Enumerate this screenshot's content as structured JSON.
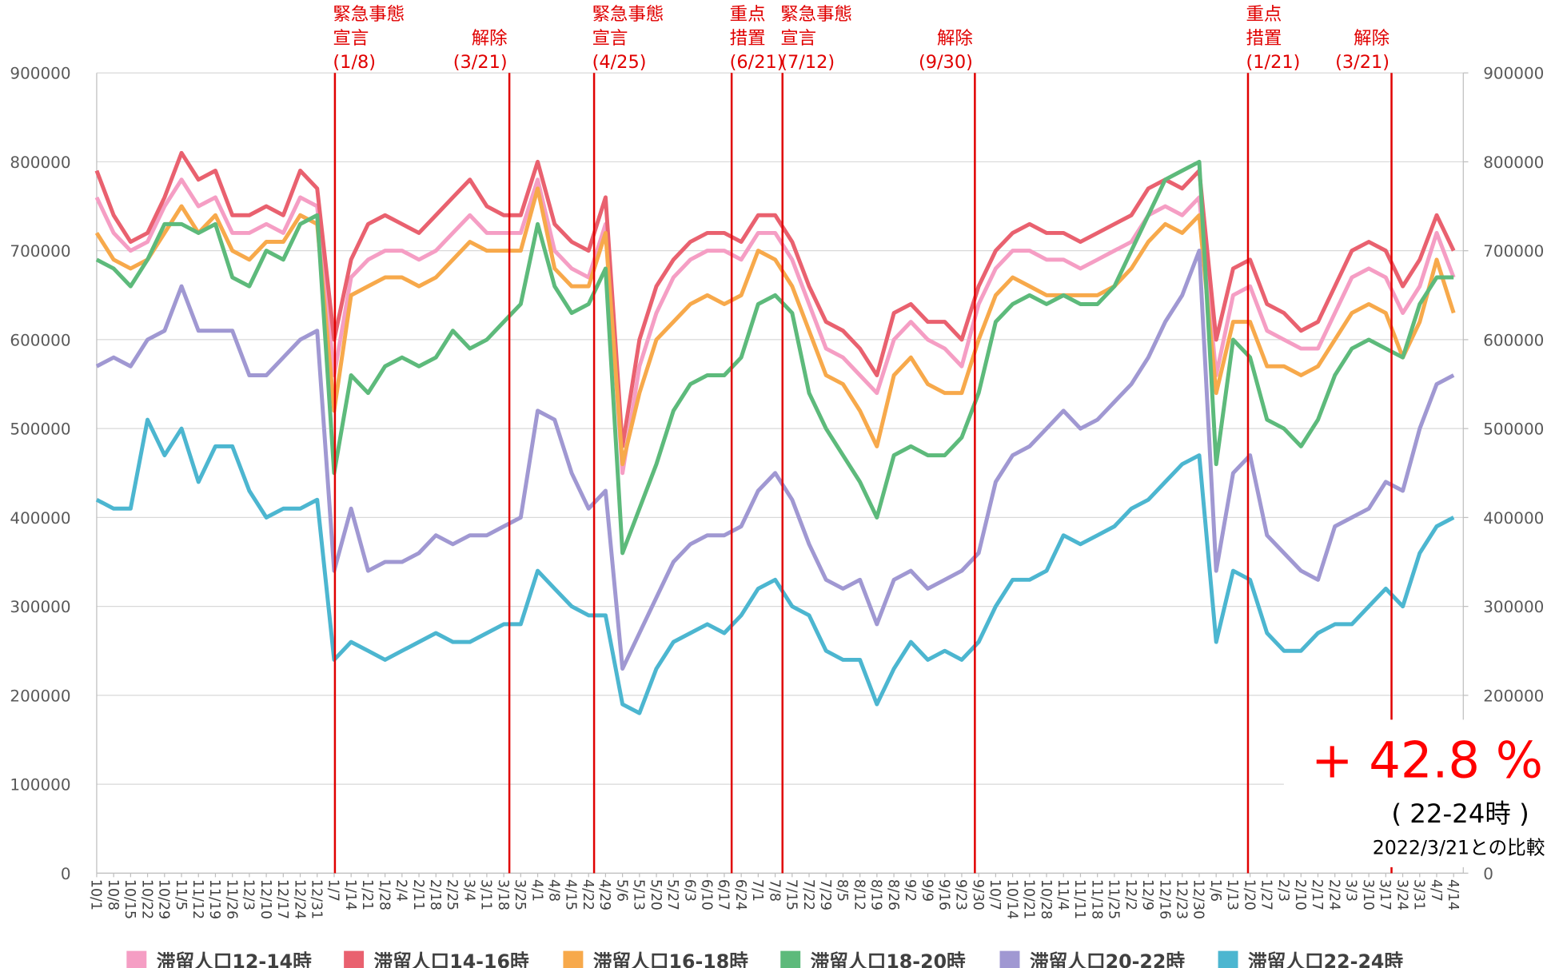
{
  "chart_data": {
    "type": "line",
    "categories": [
      "10/1",
      "10/8",
      "10/15",
      "10/22",
      "10/29",
      "11/5",
      "11/12",
      "11/19",
      "11/26",
      "12/3",
      "12/10",
      "12/17",
      "12/24",
      "12/31",
      "1/7",
      "1/14",
      "1/21",
      "1/28",
      "2/4",
      "2/11",
      "2/18",
      "2/25",
      "3/4",
      "3/11",
      "3/18",
      "3/25",
      "4/1",
      "4/8",
      "4/15",
      "4/22",
      "4/29",
      "5/6",
      "5/13",
      "5/20",
      "5/27",
      "6/3",
      "6/10",
      "6/17",
      "6/24",
      "7/1",
      "7/8",
      "7/15",
      "7/22",
      "7/29",
      "8/5",
      "8/12",
      "8/19",
      "8/26",
      "9/2",
      "9/9",
      "9/16",
      "9/23",
      "9/30",
      "10/7",
      "10/14",
      "10/21",
      "10/28",
      "11/4",
      "11/11",
      "11/18",
      "11/25",
      "12/2",
      "12/9",
      "12/16",
      "12/23",
      "12/30",
      "1/6",
      "1/13",
      "1/20",
      "1/27",
      "2/3",
      "2/10",
      "2/17",
      "2/24",
      "3/3",
      "3/10",
      "3/17",
      "3/24",
      "3/31",
      "4/7",
      "4/14"
    ],
    "series": [
      {
        "name": "滞留人口12-14時",
        "color": "#f59ec4",
        "values": [
          760000,
          720000,
          700000,
          710000,
          750000,
          780000,
          750000,
          760000,
          720000,
          720000,
          730000,
          720000,
          760000,
          750000,
          560000,
          670000,
          690000,
          700000,
          700000,
          690000,
          700000,
          720000,
          740000,
          720000,
          720000,
          720000,
          780000,
          700000,
          680000,
          670000,
          730000,
          450000,
          570000,
          630000,
          670000,
          690000,
          700000,
          700000,
          690000,
          720000,
          720000,
          690000,
          640000,
          590000,
          580000,
          560000,
          540000,
          600000,
          620000,
          600000,
          590000,
          570000,
          640000,
          680000,
          700000,
          700000,
          690000,
          690000,
          680000,
          690000,
          700000,
          710000,
          740000,
          750000,
          740000,
          760000,
          560000,
          650000,
          660000,
          610000,
          600000,
          590000,
          590000,
          630000,
          670000,
          680000,
          670000,
          630000,
          660000,
          720000,
          670000
        ]
      },
      {
        "name": "滞留人口14-16時",
        "color": "#e9616f",
        "values": [
          790000,
          740000,
          710000,
          720000,
          760000,
          810000,
          780000,
          790000,
          740000,
          740000,
          750000,
          740000,
          790000,
          770000,
          600000,
          690000,
          730000,
          740000,
          730000,
          720000,
          740000,
          760000,
          780000,
          750000,
          740000,
          740000,
          800000,
          730000,
          710000,
          700000,
          760000,
          480000,
          600000,
          660000,
          690000,
          710000,
          720000,
          720000,
          710000,
          740000,
          740000,
          710000,
          660000,
          620000,
          610000,
          590000,
          560000,
          630000,
          640000,
          620000,
          620000,
          600000,
          660000,
          700000,
          720000,
          730000,
          720000,
          720000,
          710000,
          720000,
          730000,
          740000,
          770000,
          780000,
          770000,
          790000,
          600000,
          680000,
          690000,
          640000,
          630000,
          610000,
          620000,
          660000,
          700000,
          710000,
          700000,
          660000,
          690000,
          740000,
          700000
        ]
      },
      {
        "name": "滞留人口16-18時",
        "color": "#f7a94b",
        "values": [
          720000,
          690000,
          680000,
          690000,
          720000,
          750000,
          720000,
          740000,
          700000,
          690000,
          710000,
          710000,
          740000,
          730000,
          520000,
          650000,
          660000,
          670000,
          670000,
          660000,
          670000,
          690000,
          710000,
          700000,
          700000,
          700000,
          770000,
          680000,
          660000,
          660000,
          720000,
          460000,
          540000,
          600000,
          620000,
          640000,
          650000,
          640000,
          650000,
          700000,
          690000,
          660000,
          610000,
          560000,
          550000,
          520000,
          480000,
          560000,
          580000,
          550000,
          540000,
          540000,
          600000,
          650000,
          670000,
          660000,
          650000,
          650000,
          650000,
          650000,
          660000,
          680000,
          710000,
          730000,
          720000,
          740000,
          540000,
          620000,
          620000,
          570000,
          570000,
          560000,
          570000,
          600000,
          630000,
          640000,
          630000,
          580000,
          620000,
          690000,
          630000
        ]
      },
      {
        "name": "滞留人口18-20時",
        "color": "#5dba7b",
        "values": [
          690000,
          680000,
          660000,
          690000,
          730000,
          730000,
          720000,
          730000,
          670000,
          660000,
          700000,
          690000,
          730000,
          740000,
          450000,
          560000,
          540000,
          570000,
          580000,
          570000,
          580000,
          610000,
          590000,
          600000,
          620000,
          640000,
          730000,
          660000,
          630000,
          640000,
          680000,
          360000,
          410000,
          460000,
          520000,
          550000,
          560000,
          560000,
          580000,
          640000,
          650000,
          630000,
          540000,
          500000,
          470000,
          440000,
          400000,
          470000,
          480000,
          470000,
          470000,
          490000,
          540000,
          620000,
          640000,
          650000,
          640000,
          650000,
          640000,
          640000,
          660000,
          700000,
          740000,
          780000,
          790000,
          800000,
          460000,
          600000,
          580000,
          510000,
          500000,
          480000,
          510000,
          560000,
          590000,
          600000,
          590000,
          580000,
          640000,
          670000,
          670000
        ]
      },
      {
        "name": "滞留人口20-22時",
        "color": "#a098d2",
        "values": [
          570000,
          580000,
          570000,
          600000,
          610000,
          660000,
          610000,
          610000,
          610000,
          560000,
          560000,
          580000,
          600000,
          610000,
          340000,
          410000,
          340000,
          350000,
          350000,
          360000,
          380000,
          370000,
          380000,
          380000,
          390000,
          400000,
          520000,
          510000,
          450000,
          410000,
          430000,
          230000,
          270000,
          310000,
          350000,
          370000,
          380000,
          380000,
          390000,
          430000,
          450000,
          420000,
          370000,
          330000,
          320000,
          330000,
          280000,
          330000,
          340000,
          320000,
          330000,
          340000,
          360000,
          440000,
          470000,
          480000,
          500000,
          520000,
          500000,
          510000,
          530000,
          550000,
          580000,
          620000,
          650000,
          700000,
          340000,
          450000,
          470000,
          380000,
          360000,
          340000,
          330000,
          390000,
          400000,
          410000,
          440000,
          430000,
          500000,
          550000,
          560000
        ]
      },
      {
        "name": "滞留人口22-24時",
        "color": "#4cb6d0",
        "values": [
          420000,
          410000,
          410000,
          510000,
          470000,
          500000,
          440000,
          480000,
          480000,
          430000,
          400000,
          410000,
          410000,
          420000,
          240000,
          260000,
          250000,
          240000,
          250000,
          260000,
          270000,
          260000,
          260000,
          270000,
          280000,
          280000,
          340000,
          320000,
          300000,
          290000,
          290000,
          190000,
          180000,
          230000,
          260000,
          270000,
          280000,
          270000,
          290000,
          320000,
          330000,
          300000,
          290000,
          250000,
          240000,
          240000,
          190000,
          230000,
          260000,
          240000,
          250000,
          240000,
          260000,
          300000,
          330000,
          330000,
          340000,
          380000,
          370000,
          380000,
          390000,
          410000,
          420000,
          440000,
          460000,
          470000,
          260000,
          340000,
          330000,
          270000,
          250000,
          250000,
          270000,
          280000,
          280000,
          300000,
          320000,
          300000,
          360000,
          390000,
          400000
        ]
      }
    ],
    "ylim": [
      0,
      900000
    ],
    "yticks": [
      0,
      100000,
      200000,
      300000,
      400000,
      500000,
      600000,
      700000,
      800000,
      900000
    ],
    "y2lim": [
      0,
      900000
    ],
    "y2ticks": [
      0,
      100000,
      200000,
      300000,
      400000,
      500000,
      600000,
      700000,
      800000,
      900000
    ],
    "grid": true,
    "legend": "bottom",
    "annotations": [
      {
        "lines": [
          "緊急事態",
          "宣言",
          "(1/8)"
        ]
      },
      {
        "lines": [
          "解除",
          "(3/21)"
        ]
      },
      {
        "lines": [
          "緊急事態",
          "宣言",
          "(4/25)"
        ]
      },
      {
        "lines": [
          "重点",
          "措置",
          "(6/21)"
        ]
      },
      {
        "lines": [
          "緊急事態",
          "宣言",
          "(7/12)"
        ]
      },
      {
        "lines": [
          "解除",
          "(9/30)"
        ]
      },
      {
        "lines": [
          "重点",
          "措置",
          "(1/21)"
        ]
      },
      {
        "lines": [
          "解除",
          "(3/21)"
        ]
      }
    ],
    "callout": {
      "change": "+ 42.8 %",
      "period": "( 22-24時 )",
      "note": "2022/3/21との比較"
    }
  }
}
